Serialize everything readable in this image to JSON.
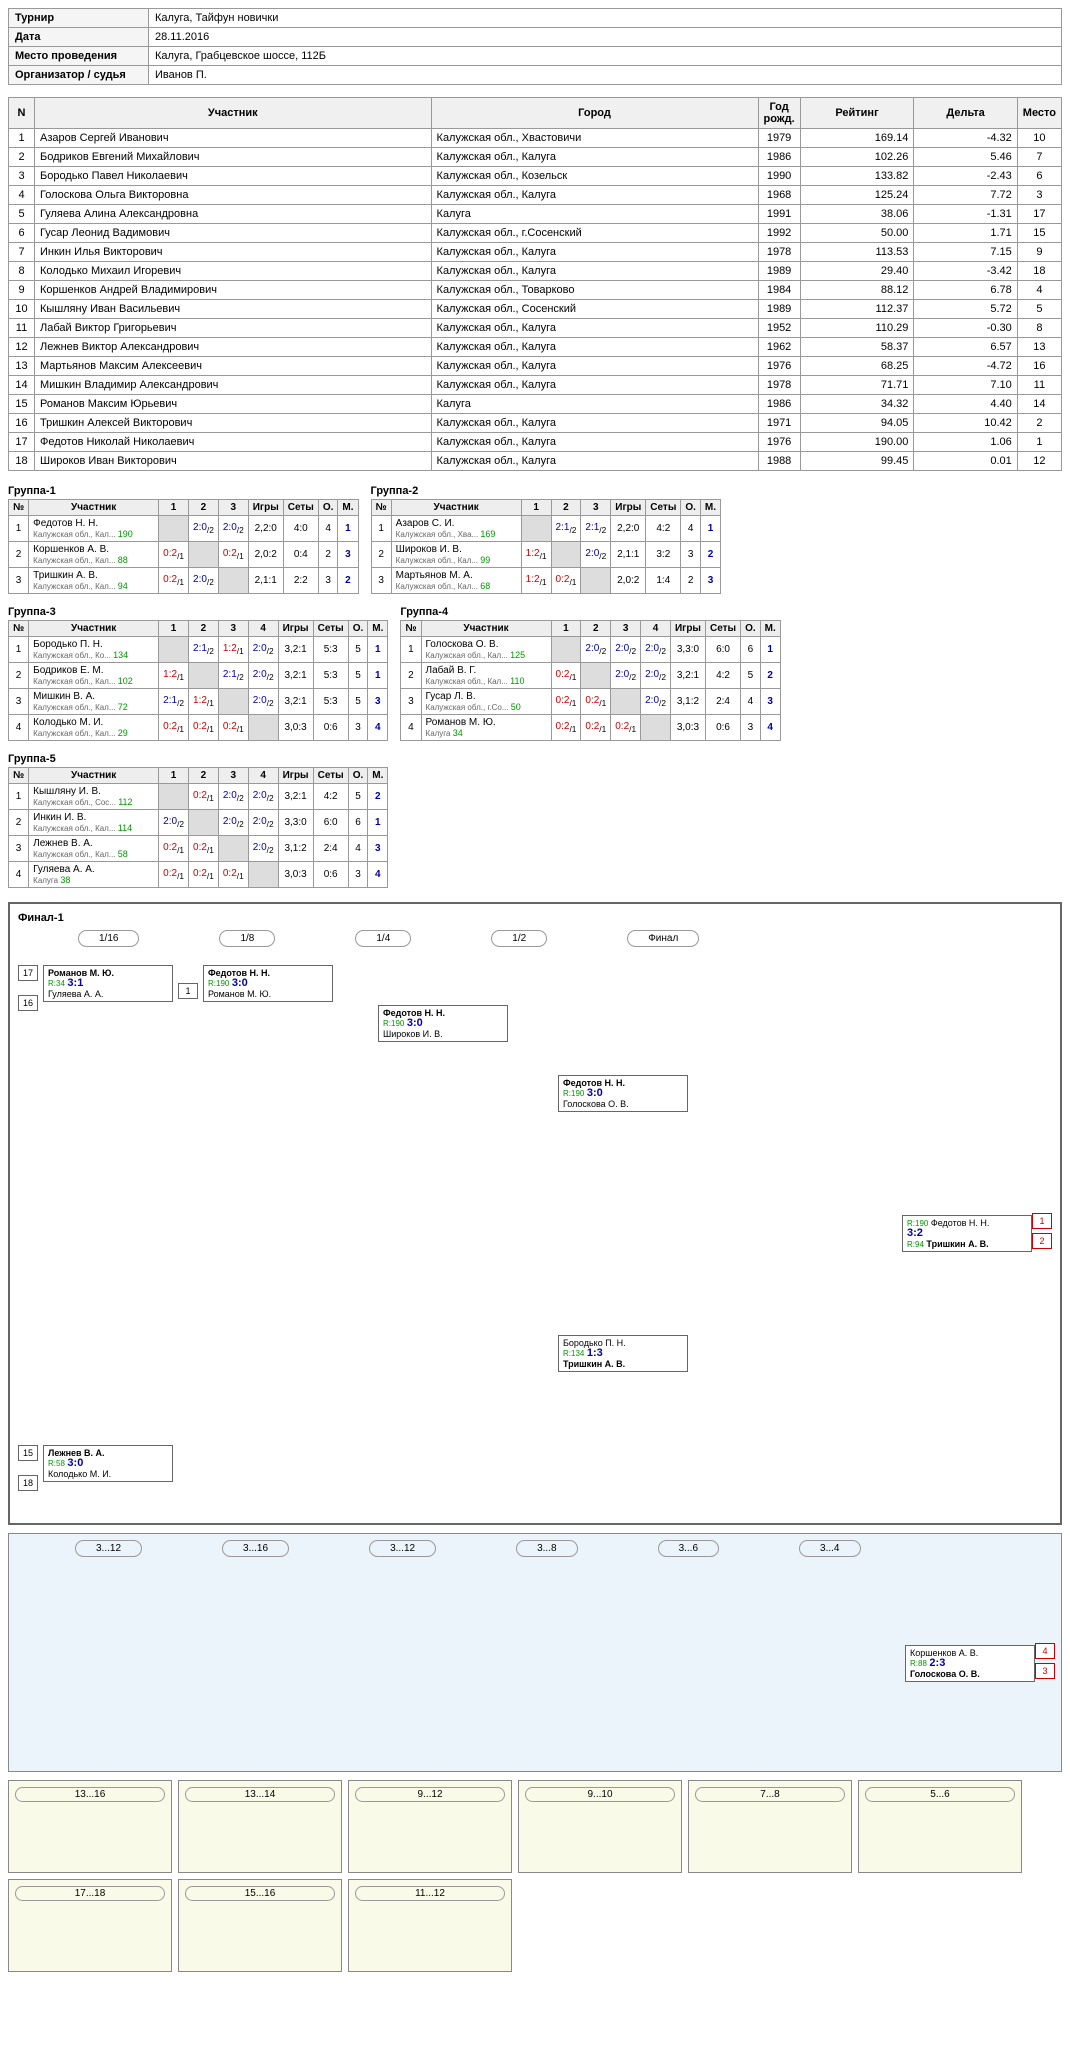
{
  "info": {
    "tournament_label": "Турнир",
    "tournament": "Калуга, Тайфун новички",
    "date_label": "Дата",
    "date": "28.11.2016",
    "venue_label": "Место проведения",
    "venue": "Калуга, Грабцевское шоссе, 112Б",
    "org_label": "Организатор / судья",
    "org": "Иванов П."
  },
  "main_headers": [
    "N",
    "Участник",
    "Город",
    "Год рожд.",
    "Рейтинг",
    "Дельта",
    "Место"
  ],
  "participants": [
    {
      "n": 1,
      "name": "Азаров Сергей Иванович",
      "city": "Калужская обл., Хвастовичи",
      "year": 1979,
      "rating": "169.14",
      "delta": "-4.32",
      "place": 10
    },
    {
      "n": 2,
      "name": "Бодриков Евгений Михайлович",
      "city": "Калужская обл., Калуга",
      "year": 1986,
      "rating": "102.26",
      "delta": "5.46",
      "place": 7
    },
    {
      "n": 3,
      "name": "Бородько Павел Николаевич",
      "city": "Калужская обл., Козельск",
      "year": 1990,
      "rating": "133.82",
      "delta": "-2.43",
      "place": 6
    },
    {
      "n": 4,
      "name": "Голоскова Ольга Викторовна",
      "city": "Калужская обл., Калуга",
      "year": 1968,
      "rating": "125.24",
      "delta": "7.72",
      "place": 3
    },
    {
      "n": 5,
      "name": "Гуляева Алина Александровна",
      "city": "Калуга",
      "year": 1991,
      "rating": "38.06",
      "delta": "-1.31",
      "place": 17
    },
    {
      "n": 6,
      "name": "Гусар Леонид Вадимович",
      "city": "Калужская обл., г.Сосенский",
      "year": 1992,
      "rating": "50.00",
      "delta": "1.71",
      "place": 15
    },
    {
      "n": 7,
      "name": "Инкин Илья Викторович",
      "city": "Калужская обл., Калуга",
      "year": 1978,
      "rating": "113.53",
      "delta": "7.15",
      "place": 9
    },
    {
      "n": 8,
      "name": "Колодько Михаил Игоревич",
      "city": "Калужская обл., Калуга",
      "year": 1989,
      "rating": "29.40",
      "delta": "-3.42",
      "place": 18
    },
    {
      "n": 9,
      "name": "Коршенков Андрей Владимирович",
      "city": "Калужская обл., Товарково",
      "year": 1984,
      "rating": "88.12",
      "delta": "6.78",
      "place": 4
    },
    {
      "n": 10,
      "name": "Кышляну Иван Васильевич",
      "city": "Калужская обл., Сосенский",
      "year": 1989,
      "rating": "112.37",
      "delta": "5.72",
      "place": 5
    },
    {
      "n": 11,
      "name": "Лабай Виктор Григорьевич",
      "city": "Калужская обл., Калуга",
      "year": 1952,
      "rating": "110.29",
      "delta": "-0.30",
      "place": 8
    },
    {
      "n": 12,
      "name": "Лежнев Виктор Александрович",
      "city": "Калужская обл., Калуга",
      "year": 1962,
      "rating": "58.37",
      "delta": "6.57",
      "place": 13
    },
    {
      "n": 13,
      "name": "Мартьянов Максим Алексеевич",
      "city": "Калужская обл., Калуга",
      "year": 1976,
      "rating": "68.25",
      "delta": "-4.72",
      "place": 16
    },
    {
      "n": 14,
      "name": "Мишкин Владимир Александрович",
      "city": "Калужская обл., Калуга",
      "year": 1978,
      "rating": "71.71",
      "delta": "7.10",
      "place": 11
    },
    {
      "n": 15,
      "name": "Романов Максим Юрьевич",
      "city": "Калуга",
      "year": 1986,
      "rating": "34.32",
      "delta": "4.40",
      "place": 14
    },
    {
      "n": 16,
      "name": "Тришкин Алексей Викторович",
      "city": "Калужская обл., Калуга",
      "year": 1971,
      "rating": "94.05",
      "delta": "10.42",
      "place": 2
    },
    {
      "n": 17,
      "name": "Федотов Николай Николаевич",
      "city": "Калужская обл., Калуга",
      "year": 1976,
      "rating": "190.00",
      "delta": "1.06",
      "place": 1
    },
    {
      "n": 18,
      "name": "Широков Иван Викторович",
      "city": "Калужская обл., Калуга",
      "year": 1988,
      "rating": "99.45",
      "delta": "0.01",
      "place": 12
    }
  ],
  "group_headers": [
    "№",
    "Участник"
  ],
  "group_cols": [
    "Игры",
    "Сеты",
    "О.",
    "М."
  ],
  "groups": [
    {
      "title": "Группа-1",
      "cols": 3,
      "rows": [
        {
          "n": 1,
          "name": "Федотов Н. Н.",
          "sub": "Калужская обл., Кал...",
          "r": 190,
          "cells": [
            "",
            "2:0/2",
            "2:0/2"
          ],
          "games": "2,2:0",
          "sets": "4:0",
          "pts": 4,
          "place": 1
        },
        {
          "n": 2,
          "name": "Коршенков А. В.",
          "sub": "Калужская обл., Кал...",
          "r": 88,
          "cells": [
            "0:2/1",
            "",
            "0:2/1"
          ],
          "games": "2,0:2",
          "sets": "0:4",
          "pts": 2,
          "place": 3
        },
        {
          "n": 3,
          "name": "Тришкин А. В.",
          "sub": "Калужская обл., Кал...",
          "r": 94,
          "cells": [
            "0:2/1",
            "2:0/2",
            ""
          ],
          "games": "2,1:1",
          "sets": "2:2",
          "pts": 3,
          "place": 2
        }
      ]
    },
    {
      "title": "Группа-2",
      "cols": 3,
      "rows": [
        {
          "n": 1,
          "name": "Азаров С. И.",
          "sub": "Калужская обл., Хва...",
          "r": 169,
          "cells": [
            "",
            "2:1/2",
            "2:1/2"
          ],
          "games": "2,2:0",
          "sets": "4:2",
          "pts": 4,
          "place": 1
        },
        {
          "n": 2,
          "name": "Широков И. В.",
          "sub": "Калужская обл., Кал...",
          "r": 99,
          "cells": [
            "1:2/1",
            "",
            "2:0/2"
          ],
          "games": "2,1:1",
          "sets": "3:2",
          "pts": 3,
          "place": 2
        },
        {
          "n": 3,
          "name": "Мартьянов М. А.",
          "sub": "Калужская обл., Кал...",
          "r": 68,
          "cells": [
            "1:2/1",
            "0:2/1",
            ""
          ],
          "games": "2,0:2",
          "sets": "1:4",
          "pts": 2,
          "place": 3
        }
      ]
    },
    {
      "title": "Группа-3",
      "cols": 4,
      "rows": [
        {
          "n": 1,
          "name": "Бородько П. Н.",
          "sub": "Калужская обл., Ко...",
          "r": 134,
          "cells": [
            "",
            "2:1/2",
            "1:2/1",
            "2:0/2"
          ],
          "games": "3,2:1",
          "sets": "5:3",
          "pts": 5,
          "place": 1
        },
        {
          "n": 2,
          "name": "Бодриков Е. М.",
          "sub": "Калужская обл., Кал...",
          "r": 102,
          "cells": [
            "1:2/1",
            "",
            "2:1/2",
            "2:0/2"
          ],
          "games": "3,2:1",
          "sets": "5:3",
          "pts": 5,
          "place": 1
        },
        {
          "n": 3,
          "name": "Мишкин В. А.",
          "sub": "Калужская обл., Кал...",
          "r": 72,
          "cells": [
            "2:1/2",
            "1:2/1",
            "",
            "2:0/2"
          ],
          "games": "3,2:1",
          "sets": "5:3",
          "pts": 5,
          "place": 3
        },
        {
          "n": 4,
          "name": "Колодько М. И.",
          "sub": "Калужская обл., Кал...",
          "r": 29,
          "cells": [
            "0:2/1",
            "0:2/1",
            "0:2/1",
            ""
          ],
          "games": "3,0:3",
          "sets": "0:6",
          "pts": 3,
          "place": 4
        }
      ]
    },
    {
      "title": "Группа-4",
      "cols": 4,
      "rows": [
        {
          "n": 1,
          "name": "Голоскова О. В.",
          "sub": "Калужская обл., Кал...",
          "r": 125,
          "cells": [
            "",
            "2:0/2",
            "2:0/2",
            "2:0/2"
          ],
          "games": "3,3:0",
          "sets": "6:0",
          "pts": 6,
          "place": 1
        },
        {
          "n": 2,
          "name": "Лабай В. Г.",
          "sub": "Калужская обл., Кал...",
          "r": 110,
          "cells": [
            "0:2/1",
            "",
            "2:0/2",
            "2:0/2"
          ],
          "games": "3,2:1",
          "sets": "4:2",
          "pts": 5,
          "place": 2
        },
        {
          "n": 3,
          "name": "Гусар Л. В.",
          "sub": "Калужская обл., г.Со...",
          "r": 50,
          "cells": [
            "0:2/1",
            "0:2/1",
            "",
            "2:0/2"
          ],
          "games": "3,1:2",
          "sets": "2:4",
          "pts": 4,
          "place": 3
        },
        {
          "n": 4,
          "name": "Романов М. Ю.",
          "sub": "Калуга",
          "r": 34,
          "cells": [
            "0:2/1",
            "0:2/1",
            "0:2/1",
            ""
          ],
          "games": "3,0:3",
          "sets": "0:6",
          "pts": 3,
          "place": 4
        }
      ]
    },
    {
      "title": "Группа-5",
      "cols": 4,
      "rows": [
        {
          "n": 1,
          "name": "Кышляну И. В.",
          "sub": "Калужская обл., Сос...",
          "r": 112,
          "cells": [
            "",
            "0:2/1",
            "2:0/2",
            "2:0/2"
          ],
          "games": "3,2:1",
          "sets": "4:2",
          "pts": 5,
          "place": 2
        },
        {
          "n": 2,
          "name": "Инкин И. В.",
          "sub": "Калужская обл., Кал...",
          "r": 114,
          "cells": [
            "2:0/2",
            "",
            "2:0/2",
            "2:0/2"
          ],
          "games": "3,3:0",
          "sets": "6:0",
          "pts": 6,
          "place": 1
        },
        {
          "n": 3,
          "name": "Лежнев В. А.",
          "sub": "Калужская обл., Кал...",
          "r": 58,
          "cells": [
            "0:2/1",
            "0:2/1",
            "",
            "2:0/2"
          ],
          "games": "3,1:2",
          "sets": "2:4",
          "pts": 4,
          "place": 3
        },
        {
          "n": 4,
          "name": "Гуляева А. А.",
          "sub": "Калуга",
          "r": 38,
          "cells": [
            "0:2/1",
            "0:2/1",
            "0:2/1",
            ""
          ],
          "games": "3,0:3",
          "sets": "0:6",
          "pts": 3,
          "place": 4
        }
      ]
    }
  ],
  "final_title": "Финал-1",
  "stages": [
    "1/16",
    "1/8",
    "1/4",
    "1/2",
    "Финал"
  ],
  "final_match": {
    "p1": "Федотов Н. Н.",
    "r1": "R:190",
    "score": "3:2",
    "p2": "Тришкин А. В.",
    "r2": "R:94",
    "pos1": "1",
    "pos2": "2",
    "seed": "17"
  },
  "consolation_titles": [
    "3...12",
    "3...16",
    "3...12",
    "3...8",
    "3...6",
    "3...4",
    "13...16",
    "13...14",
    "9...12",
    "9...10",
    "7...8",
    "5...6",
    "17...18",
    "15...16",
    "11...12"
  ]
}
